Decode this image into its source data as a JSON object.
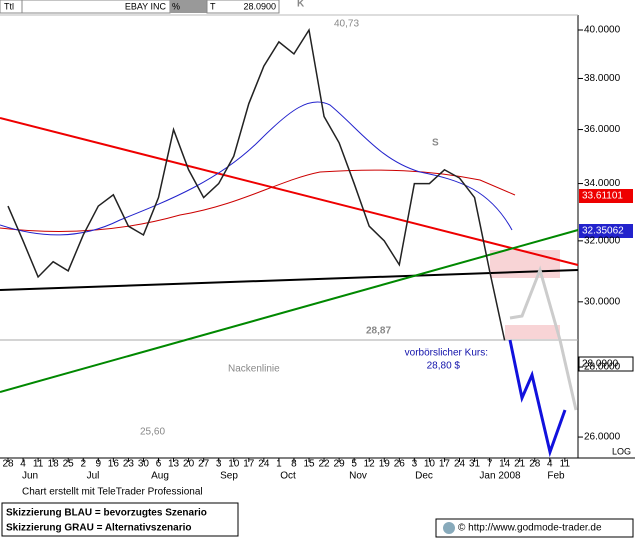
{
  "chart_data": {
    "type": "line",
    "log_scale": true,
    "header": {
      "tag": "Ttl",
      "symbol": "EBAY INC",
      "percent": "%",
      "t": "T",
      "last": "28.0900"
    },
    "categories": [
      "28",
      "4",
      "11",
      "18",
      "25",
      "2",
      "9",
      "16",
      "23",
      "30",
      "6",
      "13",
      "20",
      "27",
      "3",
      "10",
      "17",
      "24",
      "1",
      "8",
      "15",
      "22",
      "29",
      "5",
      "12",
      "19",
      "26",
      "3",
      "10",
      "17",
      "24",
      "31",
      "7",
      "14",
      "21",
      "28",
      "4",
      "11"
    ],
    "months": [
      "Jun",
      "Jul",
      "Aug",
      "Sep",
      "Oct",
      "Nov",
      "Dec",
      "Jan 2008",
      "Feb"
    ],
    "series": [
      {
        "name": "EBAY INC",
        "color": "#222222",
        "values": [
          33.2,
          32.0,
          30.8,
          31.3,
          31.0,
          32.2,
          33.2,
          33.6,
          32.5,
          32.2,
          33.5,
          36.0,
          34.5,
          33.5,
          34.0,
          35.0,
          37.0,
          38.5,
          39.5,
          39.0,
          40.0,
          36.5,
          35.5,
          34.0,
          32.5,
          32.0,
          31.2,
          34.0,
          34.0,
          34.5,
          34.2,
          33.5,
          31.0,
          28.8,
          null,
          null,
          null,
          null
        ]
      }
    ],
    "ylim": [
      25.43,
      40.64
    ],
    "yticks": [
      {
        "value": 26,
        "label": "26.0000"
      },
      {
        "value": 28,
        "label": "28.0000"
      },
      {
        "value": 30,
        "label": "30.0000"
      },
      {
        "value": 32,
        "label": "32.0000"
      },
      {
        "value": 34,
        "label": "34.0000"
      },
      {
        "value": 36,
        "label": "36.0000"
      },
      {
        "value": 38,
        "label": "38.0000"
      },
      {
        "value": 40,
        "label": "40.0000"
      }
    ],
    "scale_label": "LOG",
    "price_tags": [
      "33.61101",
      "32.35062",
      "28.0900"
    ],
    "annotations": {
      "high": "40,73",
      "low": "25,60",
      "level": "28,87",
      "k": "K",
      "s": "S",
      "neckline": "Nackenlinie",
      "premarket": "vorbörslicher Kurs:",
      "premarket_price": "28,80 $"
    },
    "footer": {
      "credit": "Chart erstellt mit TeleTrader Professional",
      "blue": "Skizzierung BLAU = bevorzugtes Szenario",
      "grey": "Skizzierung GRAU = Alternativszenario",
      "url": "© http://www.godmode-trader.de"
    }
  }
}
